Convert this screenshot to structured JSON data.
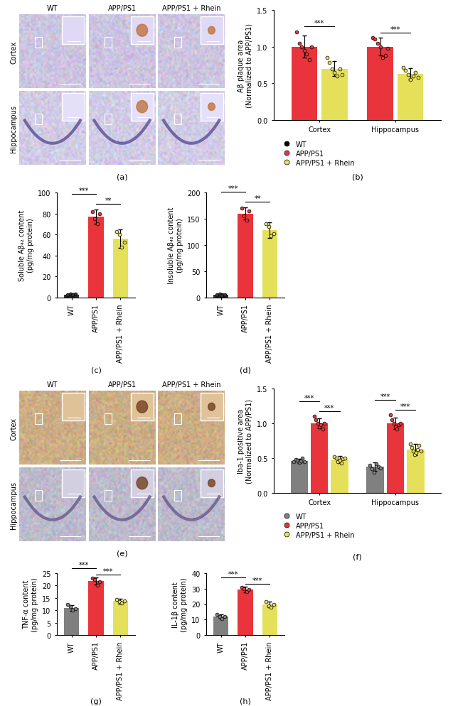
{
  "image_panels": [
    {
      "panel": "(a)",
      "columns": [
        "WT",
        "APP/PS1",
        "APP/PS1 + Rhein"
      ],
      "rows": [
        "Cortex",
        "Hippocampus"
      ]
    },
    {
      "panel": "(e)",
      "columns": [
        "WT",
        "APP/PS1",
        "APP/PS1 + Rhein"
      ],
      "rows": [
        "Cortex",
        "Hippocampus"
      ]
    }
  ],
  "chart_data": [
    {
      "type": "bar",
      "subtitle": "(b)",
      "y_label": "Aβ plaque area\n(Normalized to APP/PS1)",
      "categories": [
        "Cortex",
        "Hippocampus"
      ],
      "series": [
        {
          "name": "WT",
          "color": "#000000",
          "values": [
            null,
            null
          ],
          "errors": [
            null,
            null
          ],
          "points": [
            [],
            []
          ]
        },
        {
          "name": "APP/PS1",
          "color": "#e8343a",
          "values": [
            1.0,
            1.0
          ],
          "errors": [
            0.15,
            0.12
          ],
          "points": [
            [
              1.2,
              1.05,
              1.0,
              0.95,
              0.9,
              0.82,
              1.0
            ],
            [
              1.12,
              1.1,
              1.05,
              1.0,
              0.85,
              0.88,
              0.98
            ]
          ]
        },
        {
          "name": "APP/PS1 + Rhein",
          "color": "#e5e05a",
          "values": [
            0.7,
            0.63
          ],
          "errors": [
            0.1,
            0.08
          ],
          "points": [
            [
              0.85,
              0.78,
              0.7,
              0.65,
              0.6,
              0.7,
              0.62
            ],
            [
              0.72,
              0.68,
              0.62,
              0.55,
              0.6,
              0.65,
              0.58
            ]
          ]
        }
      ],
      "ylim": [
        0,
        1.5
      ],
      "yticks": [
        {
          "value": 0,
          "label": "0.0"
        },
        {
          "value": 0.5,
          "label": "0.5"
        },
        {
          "value": 1.0,
          "label": "1.0"
        },
        {
          "value": 1.5,
          "label": "1.5"
        }
      ],
      "legend": "upper left",
      "annotations": [
        {
          "category": "Cortex",
          "between": [
            "APP/PS1",
            "APP/PS1 + Rhein"
          ],
          "label": "***"
        },
        {
          "category": "Hippocampus",
          "between": [
            "APP/PS1",
            "APP/PS1 + Rhein"
          ],
          "label": "***"
        }
      ]
    },
    {
      "type": "bar",
      "subtitle": "(c)",
      "y_label": "Soluble Aβ₄₂ content\n(pg/mg protein)",
      "categories": [
        "WT",
        "APP/PS1",
        "APP/PS1 + Rhein"
      ],
      "values": [
        3,
        77,
        56
      ],
      "errors": [
        1,
        7,
        9
      ],
      "colors": [
        "#333333",
        "#e8343a",
        "#e5e05a"
      ],
      "points": [
        [
          3,
          3.5,
          2.5,
          3.2
        ],
        [
          82,
          75,
          70,
          80
        ],
        [
          63,
          60,
          48,
          53
        ]
      ],
      "ylim": [
        0,
        100
      ],
      "yticks": [
        0,
        20,
        40,
        60,
        80,
        100
      ],
      "annotations": [
        {
          "between": [
            "APP/PS1",
            "APP/PS1 + Rhein"
          ],
          "label": "**"
        },
        {
          "between": [
            "WT",
            "APP/PS1"
          ],
          "label": "***"
        }
      ]
    },
    {
      "type": "bar",
      "subtitle": "(d)",
      "y_label": "Insoluble Aβ₄₂ content\n(pg/mg protein)",
      "categories": [
        "WT",
        "APP/PS1",
        "APP/PS1 + Rhein"
      ],
      "values": [
        6,
        160,
        128
      ],
      "errors": [
        2,
        12,
        15
      ],
      "colors": [
        "#333333",
        "#e8343a",
        "#e5e05a"
      ],
      "points": [
        [
          5,
          7,
          4,
          6
        ],
        [
          170,
          155,
          147,
          165
        ],
        [
          140,
          135,
          118,
          122
        ]
      ],
      "ylim": [
        0,
        200
      ],
      "yticks": [
        0,
        50,
        100,
        150,
        200
      ],
      "annotations": [
        {
          "between": [
            "APP/PS1",
            "APP/PS1 + Rhein"
          ],
          "label": "**"
        },
        {
          "between": [
            "WT",
            "APP/PS1"
          ],
          "label": "***"
        }
      ]
    },
    {
      "type": "bar",
      "subtitle": "(f)",
      "y_label": "Iba-1 positive area\n(Normalized to APP/PS1)",
      "categories": [
        "Cortex",
        "Hippocampus"
      ],
      "series": [
        {
          "name": "WT",
          "color": "#808080",
          "values": [
            0.46,
            0.38
          ],
          "errors": [
            0.03,
            0.06
          ],
          "points": [
            [
              0.45,
              0.48,
              0.47,
              0.44,
              0.46,
              0.5,
              0.45
            ],
            [
              0.4,
              0.35,
              0.3,
              0.42,
              0.38,
              0.36
            ]
          ]
        },
        {
          "name": "APP/PS1",
          "color": "#e8343a",
          "values": [
            1.0,
            1.0
          ],
          "errors": [
            0.07,
            0.08
          ],
          "points": [
            [
              1.1,
              1.05,
              1.0,
              0.95,
              0.98,
              0.92,
              1.0
            ],
            [
              1.12,
              1.05,
              1.0,
              0.95,
              0.92,
              0.98,
              1.0
            ]
          ]
        },
        {
          "name": "APP/PS1 + Rhein",
          "color": "#e5e05a",
          "values": [
            0.48,
            0.62
          ],
          "errors": [
            0.05,
            0.08
          ],
          "points": [
            [
              0.52,
              0.5,
              0.45,
              0.47,
              0.43,
              0.49,
              0.5
            ],
            [
              0.7,
              0.65,
              0.6,
              0.55,
              0.58,
              0.62,
              0.68,
              0.6
            ]
          ]
        }
      ],
      "ylim": [
        0,
        1.5
      ],
      "yticks": [
        {
          "value": 0,
          "label": "0.0"
        },
        {
          "value": 0.5,
          "label": "0.5"
        },
        {
          "value": 1.0,
          "label": "1.0"
        },
        {
          "value": 1.5,
          "label": "1.5"
        }
      ],
      "legend": "upper left",
      "annotations": [
        {
          "category": "Cortex",
          "between": [
            "APP/PS1",
            "APP/PS1 + Rhein"
          ],
          "label": "***"
        },
        {
          "category": "Cortex",
          "between": [
            "WT",
            "APP/PS1"
          ],
          "label": "***"
        },
        {
          "category": "Hippocampus",
          "between": [
            "APP/PS1",
            "APP/PS1 + Rhein"
          ],
          "label": "***"
        },
        {
          "category": "Hippocampus",
          "between": [
            "WT",
            "APP/PS1"
          ],
          "label": "***"
        }
      ]
    },
    {
      "type": "bar",
      "subtitle": "(g)",
      "y_label": "TNF-α content\n(pg/mg protein)",
      "categories": [
        "WT",
        "APP/PS1",
        "APP/PS1 + Rhein"
      ],
      "values": [
        11,
        21.8,
        13.7
      ],
      "errors": [
        1.2,
        1.5,
        1.0
      ],
      "colors": [
        "#7f7f7f",
        "#e8343a",
        "#e5e05a"
      ],
      "points": [
        [
          12.5,
          11.5,
          10,
          10.5
        ],
        [
          23,
          22.5,
          20,
          21.5
        ],
        [
          14.5,
          13.5,
          13,
          13.8
        ]
      ],
      "ylim": [
        0,
        25
      ],
      "yticks": [
        0,
        5,
        10,
        15,
        20,
        25
      ],
      "annotations": [
        {
          "between": [
            "APP/PS1",
            "APP/PS1 + Rhein"
          ],
          "label": "***"
        },
        {
          "between": [
            "WT",
            "APP/PS1"
          ],
          "label": "***"
        }
      ]
    },
    {
      "type": "bar",
      "subtitle": "(h)",
      "y_label": "IL-1β content\n(pg/mg protein)",
      "categories": [
        "WT",
        "APP/PS1",
        "APP/PS1 + Rhein"
      ],
      "values": [
        12,
        29.5,
        19.6
      ],
      "errors": [
        1.5,
        1.8,
        1.8
      ],
      "colors": [
        "#7f7f7f",
        "#e8343a",
        "#e5e05a"
      ],
      "points": [
        [
          13.5,
          12,
          10.5,
          12
        ],
        [
          31,
          30,
          28,
          29.5
        ],
        [
          21.5,
          19,
          18,
          20
        ]
      ],
      "ylim": [
        0,
        40
      ],
      "yticks": [
        0,
        10,
        20,
        30,
        40
      ],
      "annotations": [
        {
          "between": [
            "APP/PS1",
            "APP/PS1 + Rhein"
          ],
          "label": "***"
        },
        {
          "between": [
            "WT",
            "APP/PS1"
          ],
          "label": "***"
        }
      ]
    }
  ]
}
